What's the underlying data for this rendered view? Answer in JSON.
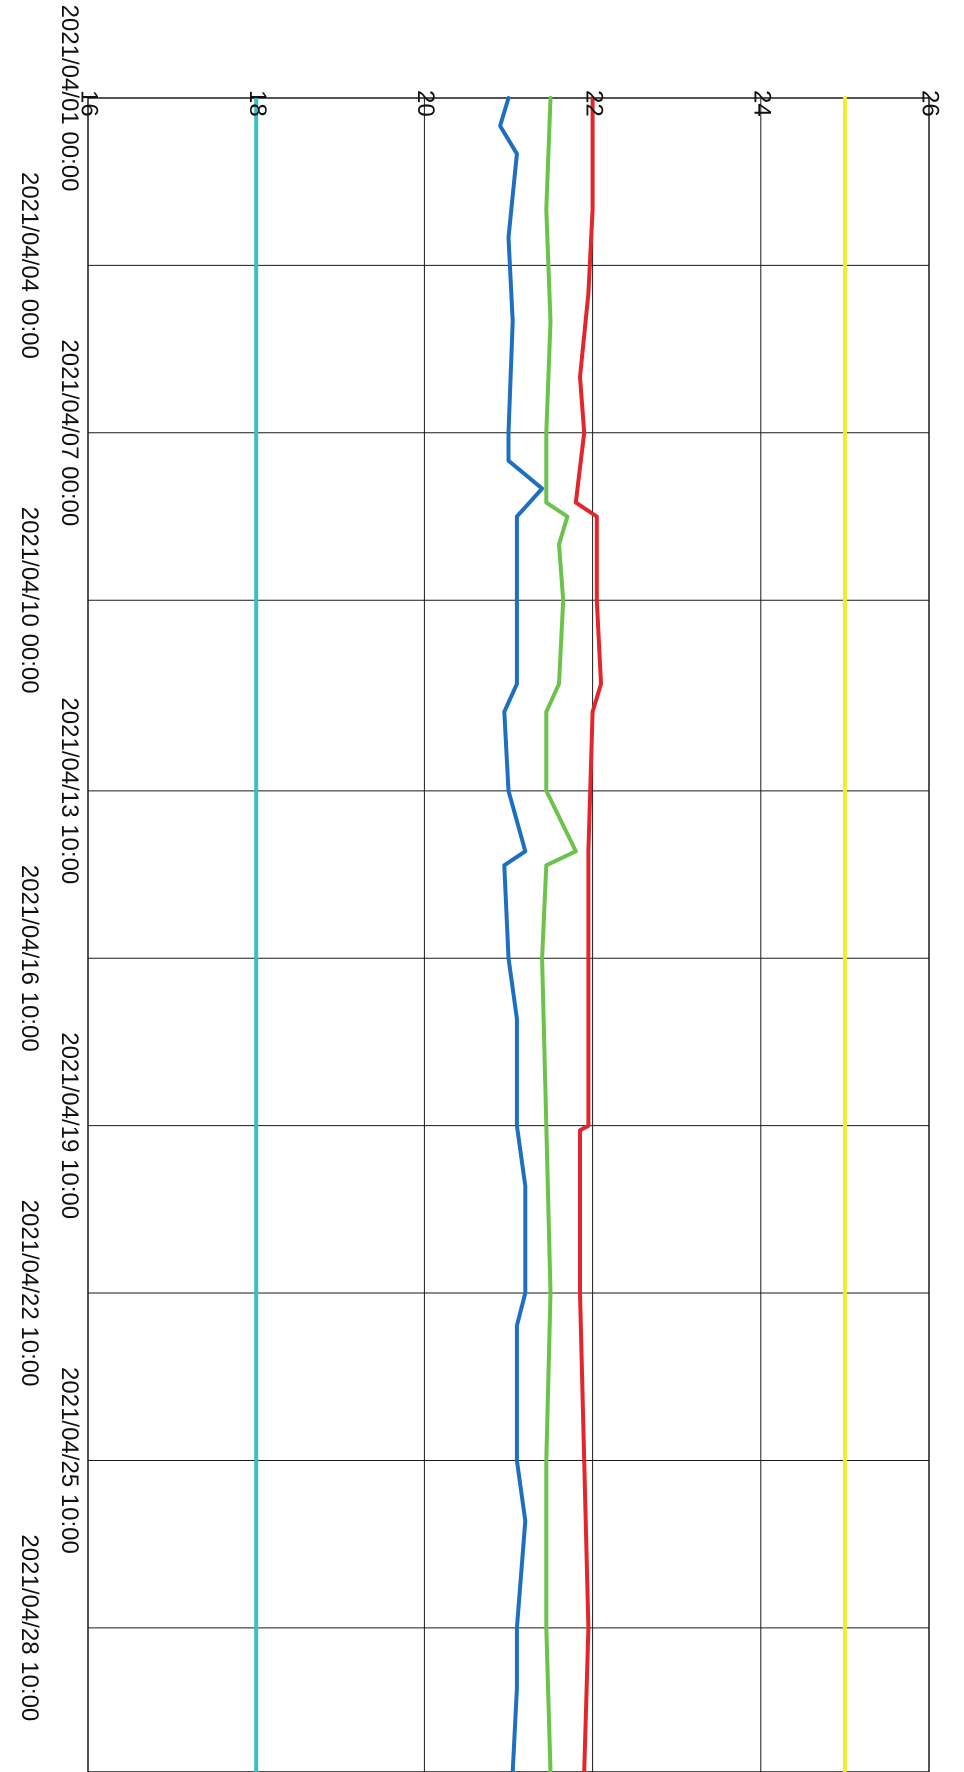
{
  "chart_data": {
    "type": "line",
    "orientation": "rotated-90-clockwise",
    "title": "",
    "xlabel": "",
    "ylabel": "",
    "x_ticks": [
      "2021/04/01 00:00",
      "2021/04/04 00:00",
      "2021/04/07 00:00",
      "2021/04/10 00:00",
      "2021/04/13 10:00",
      "2021/04/16 10:00",
      "2021/04/19 10:00",
      "2021/04/22 10:00",
      "2021/04/25 10:00",
      "2021/04/28 10:00"
    ],
    "y_ticks": [
      "16",
      "18",
      "20",
      "22",
      "24",
      "26"
    ],
    "xlim": [
      "2021/04/01 00:00",
      "2021/05/01 00:00"
    ],
    "ylim": [
      16,
      26
    ],
    "grid": true,
    "legend": "none",
    "series": [
      {
        "color": "#f2ec2e",
        "points": [
          [
            "2021/04/01 00:00",
            25.0
          ],
          [
            "2021/05/01 00:00",
            25.0
          ]
        ]
      },
      {
        "color": "#3bbfbf",
        "points": [
          [
            "2021/04/01 00:00",
            18.0
          ],
          [
            "2021/05/01 00:00",
            18.0
          ]
        ]
      },
      {
        "color": "#e3262c",
        "points": [
          [
            "2021/04/01 00:00",
            22.0
          ],
          [
            "2021/04/03 00:00",
            22.0
          ],
          [
            "2021/04/04 12:00",
            21.95
          ],
          [
            "2021/04/06 00:00",
            21.85
          ],
          [
            "2021/04/07 00:00",
            21.9
          ],
          [
            "2021/04/08 06:00",
            21.8
          ],
          [
            "2021/04/08 12:00",
            22.05
          ],
          [
            "2021/04/10 00:00",
            22.05
          ],
          [
            "2021/04/11 12:00",
            22.1
          ],
          [
            "2021/04/12 00:00",
            22.0
          ],
          [
            "2021/04/14 12:00",
            21.95
          ],
          [
            "2021/04/16 10:00",
            21.95
          ],
          [
            "2021/04/19 10:00",
            21.95
          ],
          [
            "2021/04/19 12:00",
            21.85
          ],
          [
            "2021/04/22 10:00",
            21.85
          ],
          [
            "2021/04/25 10:00",
            21.9
          ],
          [
            "2021/04/28 10:00",
            21.95
          ],
          [
            "2021/05/01 00:00",
            21.9
          ]
        ]
      },
      {
        "color": "#6cc24a",
        "points": [
          [
            "2021/04/01 00:00",
            21.5
          ],
          [
            "2021/04/03 00:00",
            21.45
          ],
          [
            "2021/04/05 00:00",
            21.5
          ],
          [
            "2021/04/07 00:00",
            21.45
          ],
          [
            "2021/04/08 06:00",
            21.45
          ],
          [
            "2021/04/08 12:00",
            21.7
          ],
          [
            "2021/04/09 00:00",
            21.6
          ],
          [
            "2021/04/10 00:00",
            21.65
          ],
          [
            "2021/04/11 12:00",
            21.6
          ],
          [
            "2021/04/12 00:00",
            21.45
          ],
          [
            "2021/04/13 10:00",
            21.45
          ],
          [
            "2021/04/14 12:00",
            21.8
          ],
          [
            "2021/04/14 18:00",
            21.45
          ],
          [
            "2021/04/16 10:00",
            21.4
          ],
          [
            "2021/04/19 10:00",
            21.45
          ],
          [
            "2021/04/22 10:00",
            21.5
          ],
          [
            "2021/04/25 10:00",
            21.45
          ],
          [
            "2021/04/28 10:00",
            21.45
          ],
          [
            "2021/05/01 00:00",
            21.5
          ]
        ]
      },
      {
        "color": "#1f6fc0",
        "points": [
          [
            "2021/04/01 00:00",
            21.0
          ],
          [
            "2021/04/01 12:00",
            20.9
          ],
          [
            "2021/04/02 00:00",
            21.1
          ],
          [
            "2021/04/03 12:00",
            21.0
          ],
          [
            "2021/04/05 00:00",
            21.05
          ],
          [
            "2021/04/07 00:00",
            21.0
          ],
          [
            "2021/04/07 12:00",
            21.0
          ],
          [
            "2021/04/08 00:00",
            21.4
          ],
          [
            "2021/04/08 12:00",
            21.1
          ],
          [
            "2021/04/10 00:00",
            21.1
          ],
          [
            "2021/04/11 12:00",
            21.1
          ],
          [
            "2021/04/12 00:00",
            20.95
          ],
          [
            "2021/04/13 10:00",
            21.0
          ],
          [
            "2021/04/14 12:00",
            21.2
          ],
          [
            "2021/04/14 18:00",
            20.95
          ],
          [
            "2021/04/16 10:00",
            21.0
          ],
          [
            "2021/04/17 12:00",
            21.1
          ],
          [
            "2021/04/19 10:00",
            21.1
          ],
          [
            "2021/04/20 12:00",
            21.2
          ],
          [
            "2021/04/22 10:00",
            21.2
          ],
          [
            "2021/04/23 00:00",
            21.1
          ],
          [
            "2021/04/25 10:00",
            21.1
          ],
          [
            "2021/04/26 12:00",
            21.2
          ],
          [
            "2021/04/28 10:00",
            21.1
          ],
          [
            "2021/04/29 12:00",
            21.1
          ],
          [
            "2021/05/01 00:00",
            21.05
          ]
        ]
      }
    ]
  }
}
